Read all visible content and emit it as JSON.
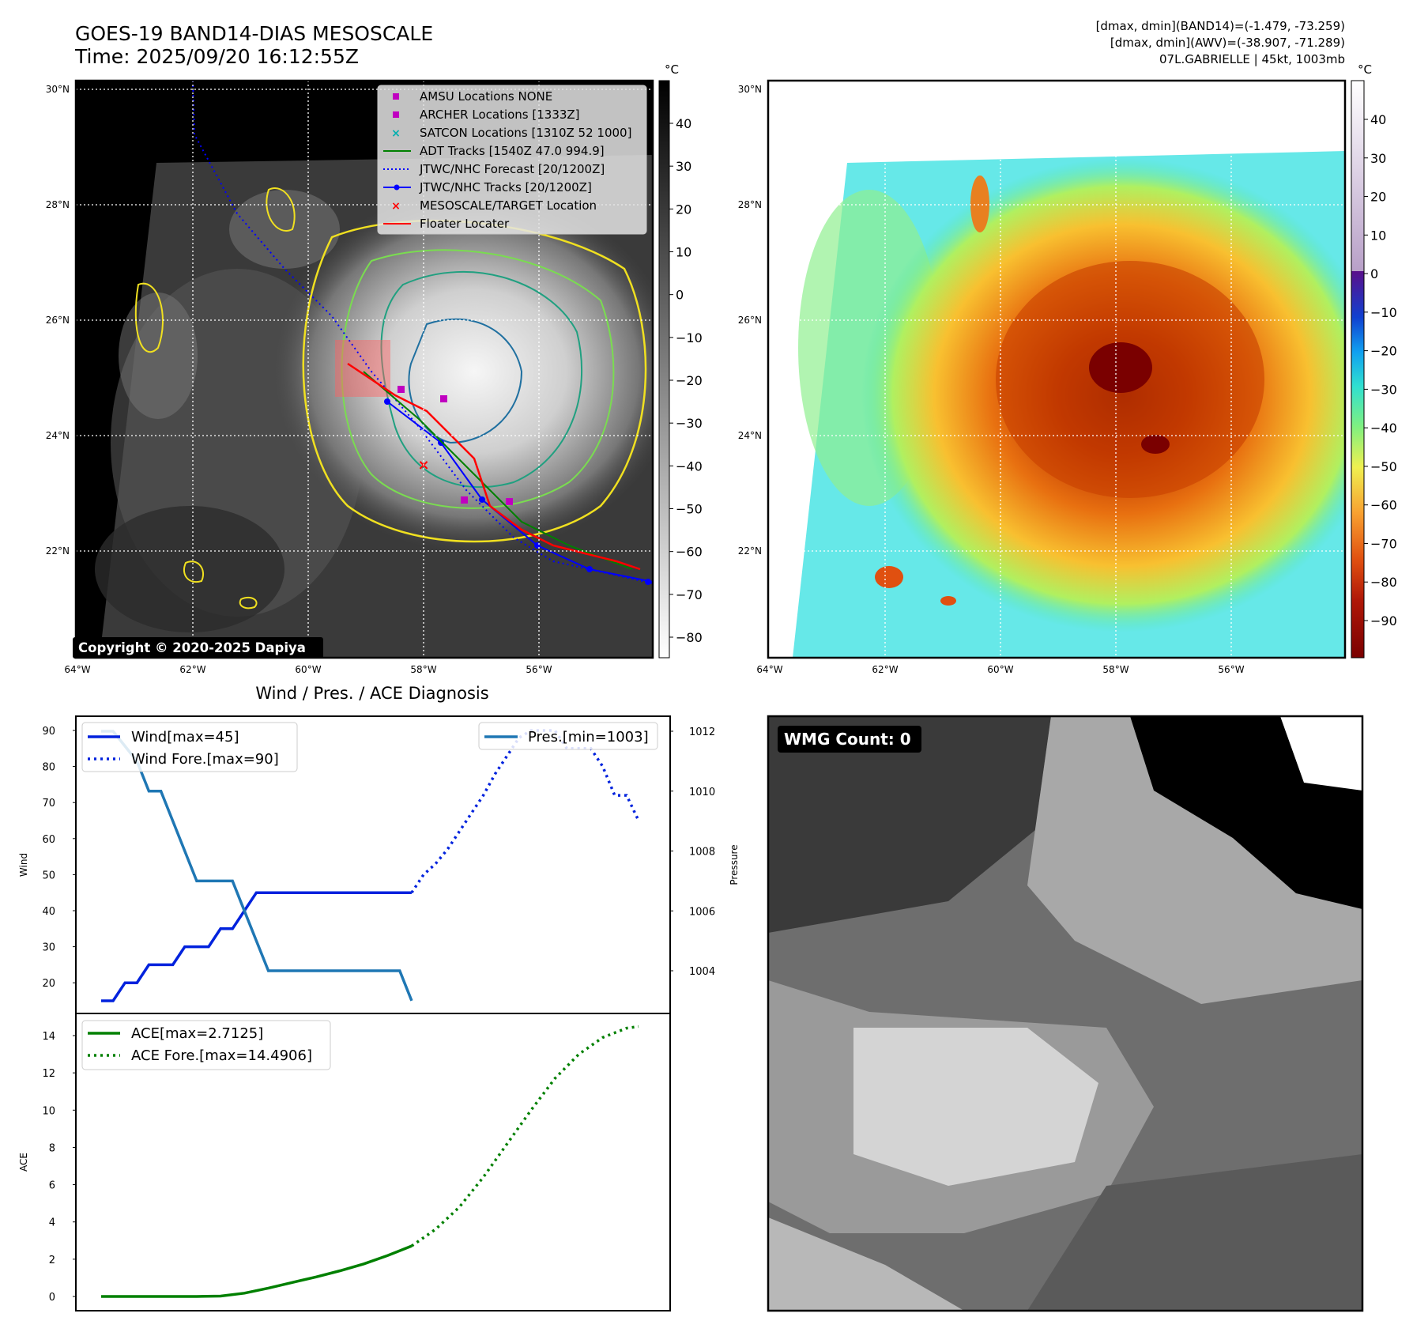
{
  "header": {
    "title_line1": "GOES-19 BAND14-DIAS MESOSCALE",
    "title_line2": "Time: 2025/09/20 16:12:55Z",
    "stats_line1": "[dmax, dmin](BAND14)=(-1.479, -73.259)",
    "stats_line2": "[dmax, dmin](AWV)=(-38.907, -71.289)",
    "stats_line3": "07L.GABRIELLE | 45kt, 1003mb"
  },
  "ir_panel": {
    "copyright": "Copyright © 2020-2025 Dapiya",
    "lat_labels": [
      "30°N",
      "28°N",
      "26°N",
      "24°N",
      "22°N"
    ],
    "lat_values": [
      30,
      28,
      26,
      24,
      22
    ],
    "lon_labels": [
      "64°W",
      "62°W",
      "60°W",
      "58°W",
      "56°W"
    ],
    "lon_values": [
      -64,
      -62,
      -60,
      -58,
      -56
    ],
    "colorbar_unit": "°C",
    "colorbar_ticks": [
      "40",
      "30",
      "20",
      "10",
      "0",
      "−10",
      "−20",
      "−30",
      "−40",
      "−50",
      "−60",
      "−70",
      "−80"
    ],
    "colorbar_values": [
      40,
      30,
      20,
      10,
      0,
      -10,
      -20,
      -30,
      -40,
      -50,
      -60,
      -70,
      -80
    ],
    "legend": [
      {
        "label": "AMSU Locations NONE",
        "marker": "square",
        "color": "#c000c0"
      },
      {
        "label": "ARCHER Locations [1333Z]",
        "marker": "square",
        "color": "#c000c0"
      },
      {
        "label": "SATCON Locations [1310Z 52 1000]",
        "marker": "x",
        "color": "#00b0b0"
      },
      {
        "label": "ADT Tracks [1540Z 47.0 994.9]",
        "marker": "line",
        "color": "#008000"
      },
      {
        "label": "JTWC/NHC Forecast [20/1200Z]",
        "marker": "dotted",
        "color": "#0000ff"
      },
      {
        "label": "JTWC/NHC Tracks [20/1200Z]",
        "marker": "line-dot",
        "color": "#0000ff"
      },
      {
        "label": "MESOSCALE/TARGET Location",
        "marker": "x",
        "color": "#ff0000"
      },
      {
        "label": "Floater Locater",
        "marker": "line",
        "color": "#ff0000"
      }
    ]
  },
  "awv_panel": {
    "lat_labels": [
      "30°N",
      "28°N",
      "26°N",
      "24°N",
      "22°N"
    ],
    "lon_labels": [
      "64°W",
      "62°W",
      "60°W",
      "58°W",
      "56°W"
    ],
    "colorbar_unit": "°C",
    "colorbar_ticks": [
      "40",
      "30",
      "20",
      "10",
      "0",
      "−10",
      "−20",
      "−30",
      "−40",
      "−50",
      "−60",
      "−70",
      "−80",
      "−90"
    ],
    "colorbar_values": [
      40,
      30,
      20,
      10,
      0,
      -10,
      -20,
      -30,
      -40,
      -50,
      -60,
      -70,
      -80,
      -90
    ]
  },
  "wmg_panel": {
    "label": "WMG Count: 0"
  },
  "chart_data": [
    {
      "type": "line",
      "title": "Wind / Pres. / ACE Diagnosis",
      "ylabel": "Wind",
      "ylabel_right": "Pressure",
      "ylim": [
        11,
        93
      ],
      "ylim_right": [
        1002.5,
        1012.2
      ],
      "yticks": [
        20,
        30,
        40,
        50,
        60,
        70,
        80,
        90
      ],
      "yticks_right": [
        1004,
        1006,
        1008,
        1010,
        1012
      ],
      "x": [
        0,
        1,
        2,
        3,
        4,
        5,
        6,
        7,
        8,
        9,
        10,
        11,
        12,
        13,
        14,
        15,
        16,
        17,
        18,
        19,
        20,
        21,
        22,
        23,
        24,
        25,
        26,
        27,
        28,
        29,
        30,
        31,
        32,
        33,
        34,
        35,
        36,
        37,
        38,
        39,
        40,
        41,
        42,
        43,
        44,
        45
      ],
      "series": [
        {
          "name": "Wind[max=45]",
          "style": "solid",
          "color": "#0022dd",
          "x": [
            0,
            1,
            2,
            3,
            4,
            5,
            6,
            7,
            8,
            9,
            10,
            11,
            12,
            13,
            14,
            15,
            16,
            17,
            18,
            19,
            20,
            21,
            22,
            23,
            24,
            25,
            26
          ],
          "values": [
            15,
            15,
            20,
            20,
            25,
            25,
            25,
            30,
            30,
            30,
            35,
            35,
            40,
            45,
            45,
            45,
            45,
            45,
            45,
            45,
            45,
            45,
            45,
            45,
            45,
            45,
            45
          ]
        },
        {
          "name": "Wind Fore.[max=90]",
          "style": "dotted",
          "color": "#0022dd",
          "x": [
            26,
            27,
            28,
            29,
            30,
            31,
            32,
            33,
            34,
            35,
            36,
            37,
            38,
            39,
            40,
            41,
            42,
            43,
            44,
            45
          ],
          "values": [
            45,
            50,
            53,
            57,
            62,
            67,
            72,
            78,
            83,
            88,
            90,
            90,
            90,
            85,
            85,
            85,
            80,
            72,
            72,
            65
          ]
        },
        {
          "name": "Pres.[min=1003]",
          "style": "solid",
          "color": "#1f77b4",
          "axis": "right",
          "x": [
            0,
            1,
            2,
            3,
            4,
            5,
            6,
            7,
            8,
            9,
            10,
            11,
            12,
            13,
            14,
            15,
            16,
            17,
            18,
            19,
            20,
            21,
            22,
            23,
            24,
            25,
            26
          ],
          "values": [
            1012,
            1012,
            1011.5,
            1011,
            1010,
            1010,
            1009,
            1008,
            1007,
            1007,
            1007,
            1007,
            1006,
            1005,
            1004,
            1004,
            1004,
            1004,
            1004,
            1004,
            1004,
            1004,
            1004,
            1004,
            1004,
            1004,
            1003
          ]
        }
      ],
      "legend_left": [
        "Wind[max=45]",
        "Wind Fore.[max=90]"
      ],
      "legend_right": [
        "Pres.[min=1003]"
      ]
    },
    {
      "type": "line",
      "ylabel": "ACE",
      "ylim": [
        -0.7,
        15.2
      ],
      "yticks": [
        0,
        2,
        4,
        6,
        8,
        10,
        12,
        14
      ],
      "series": [
        {
          "name": "ACE[max=2.7125]",
          "style": "solid",
          "color": "#008000",
          "x": [
            0,
            2,
            4,
            6,
            8,
            10,
            12,
            14,
            16,
            18,
            20,
            22,
            24,
            26
          ],
          "values": [
            0,
            0,
            0,
            0,
            0,
            0.02,
            0.18,
            0.45,
            0.75,
            1.05,
            1.38,
            1.75,
            2.2,
            2.71
          ]
        },
        {
          "name": "ACE Fore.[max=14.4906]",
          "style": "dotted",
          "color": "#008000",
          "x": [
            26,
            28,
            30,
            32,
            34,
            36,
            38,
            40,
            42,
            44,
            45
          ],
          "values": [
            2.71,
            3.6,
            4.8,
            6.4,
            8.2,
            10.0,
            11.7,
            13.0,
            13.9,
            14.4,
            14.49
          ]
        }
      ]
    }
  ]
}
